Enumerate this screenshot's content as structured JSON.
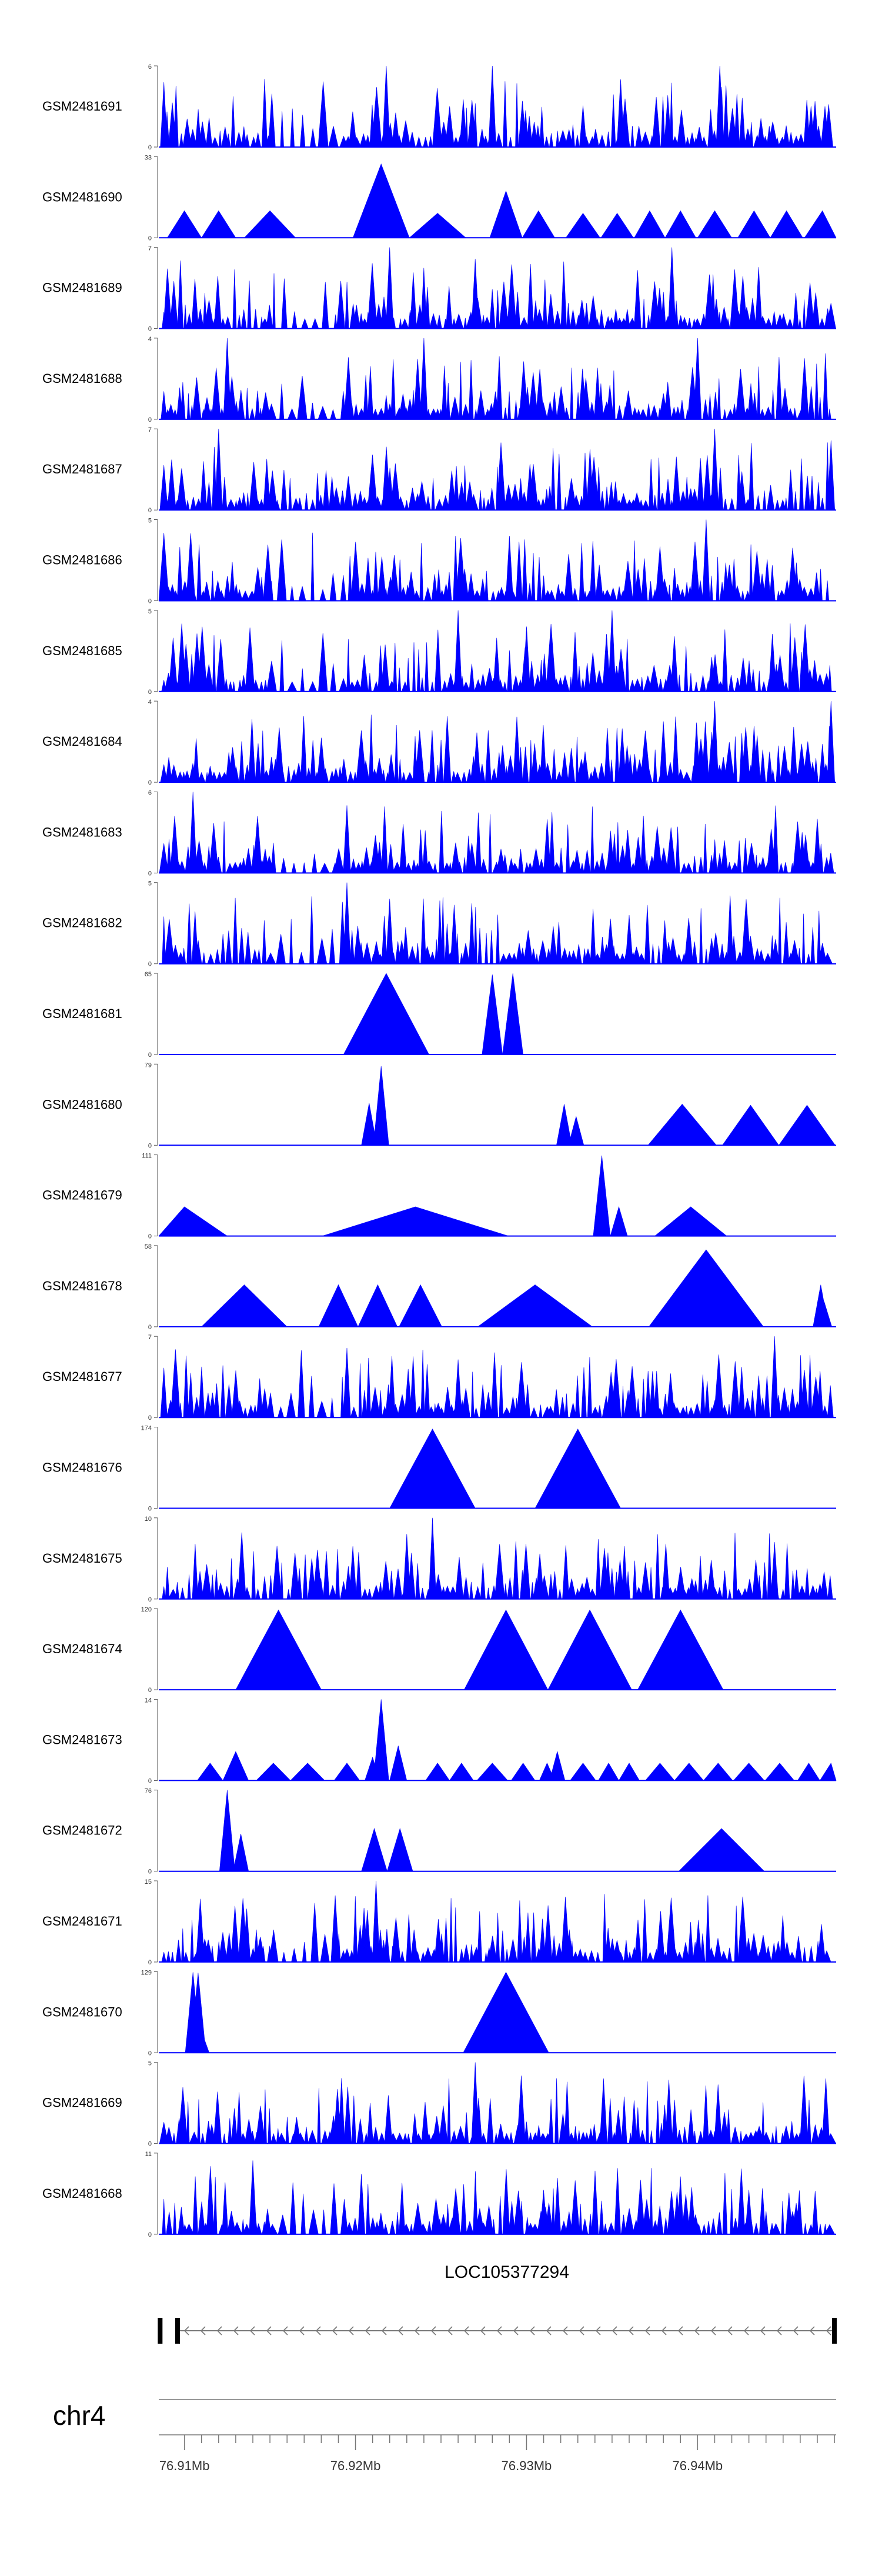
{
  "chart_data": {
    "type": "area",
    "xlabel": "",
    "ylabel": "",
    "fill_color": "#0000ff",
    "x_range_mb": [
      76.9085,
      76.9481
    ],
    "tracks": [
      {
        "name": "GSM2481691",
        "ymax": 6,
        "profile": "dense",
        "seed": 11,
        "peaks": [
          [
            76.9218,
            6
          ],
          [
            76.928,
            6
          ],
          [
            76.9413,
            6
          ],
          [
            76.9355,
            5
          ]
        ]
      },
      {
        "name": "GSM2481690",
        "ymax": 33,
        "profile": "sparse",
        "seed": 12,
        "peaks": [
          [
            76.91,
            11
          ],
          [
            76.912,
            11
          ],
          [
            76.915,
            11
          ],
          [
            76.9215,
            30
          ],
          [
            76.9248,
            10
          ],
          [
            76.9288,
            19
          ],
          [
            76.9307,
            11
          ],
          [
            76.9333,
            10
          ],
          [
            76.9353,
            10
          ],
          [
            76.9372,
            11
          ],
          [
            76.939,
            11
          ],
          [
            76.941,
            11
          ],
          [
            76.9433,
            11
          ],
          [
            76.9452,
            11
          ],
          [
            76.9473,
            11
          ]
        ]
      },
      {
        "name": "GSM2481689",
        "ymax": 7,
        "profile": "dense",
        "seed": 13,
        "peaks": [
          [
            76.922,
            7
          ],
          [
            76.9385,
            7
          ],
          [
            76.927,
            6
          ]
        ]
      },
      {
        "name": "GSM2481688",
        "ymax": 4,
        "profile": "dense",
        "seed": 14,
        "peaks": [
          [
            76.9125,
            4
          ],
          [
            76.924,
            4
          ],
          [
            76.94,
            4
          ]
        ]
      },
      {
        "name": "GSM2481687",
        "ymax": 7,
        "profile": "dense",
        "seed": 15,
        "peaks": [
          [
            76.912,
            7
          ],
          [
            76.941,
            7
          ],
          [
            76.9478,
            6
          ]
        ]
      },
      {
        "name": "GSM2481686",
        "ymax": 5,
        "profile": "dense",
        "seed": 16,
        "peaks": [
          [
            76.929,
            4
          ],
          [
            76.9405,
            5
          ],
          [
            76.92,
            3
          ]
        ]
      },
      {
        "name": "GSM2481685",
        "ymax": 5,
        "profile": "dense",
        "seed": 17,
        "peaks": [
          [
            76.926,
            5
          ],
          [
            76.935,
            5
          ],
          [
            76.93,
            4
          ]
        ]
      },
      {
        "name": "GSM2481684",
        "ymax": 4,
        "profile": "dense",
        "seed": 18,
        "peaks": [
          [
            76.941,
            4
          ],
          [
            76.9478,
            4
          ],
          [
            76.938,
            3
          ]
        ]
      },
      {
        "name": "GSM2481683",
        "ymax": 6,
        "profile": "dense",
        "seed": 19,
        "peaks": [
          [
            76.9105,
            6
          ],
          [
            76.9195,
            5
          ],
          [
            76.947,
            4
          ]
        ]
      },
      {
        "name": "GSM2481682",
        "ymax": 5,
        "profile": "dense",
        "seed": 20,
        "peaks": [
          [
            76.9195,
            5
          ],
          [
            76.922,
            4
          ],
          [
            76.936,
            3
          ]
        ]
      },
      {
        "name": "GSM2481681",
        "ymax": 65,
        "profile": "sparse",
        "seed": 21,
        "peaks": [
          [
            76.9218,
            65
          ],
          [
            76.928,
            64
          ],
          [
            76.9292,
            65
          ]
        ]
      },
      {
        "name": "GSM2481680",
        "ymax": 79,
        "profile": "sparse",
        "seed": 22,
        "peaks": [
          [
            76.9208,
            41
          ],
          [
            76.9215,
            77
          ],
          [
            76.9322,
            40
          ],
          [
            76.9329,
            28
          ],
          [
            76.9391,
            40
          ],
          [
            76.9431,
            39
          ],
          [
            76.9464,
            39
          ]
        ]
      },
      {
        "name": "GSM2481679",
        "ymax": 111,
        "profile": "sparse",
        "seed": 23,
        "peaks": [
          [
            76.91,
            40
          ],
          [
            76.9235,
            40
          ],
          [
            76.9344,
            110
          ],
          [
            76.9354,
            40
          ],
          [
            76.9396,
            40
          ]
        ]
      },
      {
        "name": "GSM2481678",
        "ymax": 58,
        "profile": "sparse",
        "seed": 24,
        "peaks": [
          [
            76.9135,
            30
          ],
          [
            76.919,
            30
          ],
          [
            76.9213,
            30
          ],
          [
            76.9238,
            30
          ],
          [
            76.9305,
            30
          ],
          [
            76.9405,
            55
          ],
          [
            76.9472,
            30
          ],
          [
            76.9474,
            18
          ]
        ]
      },
      {
        "name": "GSM2481677",
        "ymax": 7,
        "profile": "dense",
        "seed": 25,
        "peaks": [
          [
            76.9195,
            6
          ],
          [
            76.9445,
            7
          ],
          [
            76.926,
            5
          ]
        ]
      },
      {
        "name": "GSM2481676",
        "ymax": 174,
        "profile": "sparse",
        "seed": 26,
        "peaks": [
          [
            76.9245,
            170
          ],
          [
            76.933,
            170
          ]
        ]
      },
      {
        "name": "GSM2481675",
        "ymax": 10,
        "profile": "dense",
        "seed": 27,
        "peaks": [
          [
            76.9245,
            10
          ],
          [
            76.923,
            8
          ],
          [
            76.9445,
            7
          ]
        ]
      },
      {
        "name": "GSM2481674",
        "ymax": 120,
        "profile": "sparse",
        "seed": 28,
        "peaks": [
          [
            76.9155,
            118
          ],
          [
            76.9288,
            118
          ],
          [
            76.9337,
            118
          ],
          [
            76.939,
            118
          ]
        ]
      },
      {
        "name": "GSM2481673",
        "ymax": 14,
        "profile": "sparse",
        "seed": 29,
        "peaks": [
          [
            76.9115,
            3
          ],
          [
            76.913,
            5
          ],
          [
            76.9152,
            3
          ],
          [
            76.9172,
            3
          ],
          [
            76.9195,
            3
          ],
          [
            76.921,
            4
          ],
          [
            76.9215,
            14
          ],
          [
            76.9225,
            6
          ],
          [
            76.9248,
            3
          ],
          [
            76.9262,
            3
          ],
          [
            76.928,
            3
          ],
          [
            76.9298,
            3
          ],
          [
            76.9312,
            3
          ],
          [
            76.9318,
            5
          ],
          [
            76.9333,
            3
          ],
          [
            76.9348,
            3
          ],
          [
            76.936,
            3
          ],
          [
            76.9378,
            3
          ],
          [
            76.9395,
            3
          ],
          [
            76.9412,
            3
          ],
          [
            76.943,
            3
          ],
          [
            76.9448,
            3
          ],
          [
            76.9465,
            3
          ],
          [
            76.9478,
            3
          ]
        ]
      },
      {
        "name": "GSM2481672",
        "ymax": 76,
        "profile": "sparse",
        "seed": 30,
        "peaks": [
          [
            76.9125,
            76
          ],
          [
            76.9133,
            35
          ],
          [
            76.9211,
            40
          ],
          [
            76.9226,
            40
          ],
          [
            76.9414,
            40
          ]
        ]
      },
      {
        "name": "GSM2481671",
        "ymax": 15,
        "profile": "dense",
        "seed": 31,
        "peaks": [
          [
            76.9212,
            15
          ],
          [
            76.9205,
            10
          ],
          [
            76.9325,
            6
          ]
        ]
      },
      {
        "name": "GSM2481670",
        "ymax": 129,
        "profile": "sparse",
        "seed": 32,
        "peaks": [
          [
            76.9105,
            128
          ],
          [
            76.9108,
            127
          ],
          [
            76.911,
            34
          ],
          [
            76.9288,
            128
          ]
        ]
      },
      {
        "name": "GSM2481669",
        "ymax": 5,
        "profile": "dense",
        "seed": 33,
        "peaks": [
          [
            76.927,
            5
          ],
          [
            76.9345,
            4
          ],
          [
            76.9475,
            4
          ]
        ]
      },
      {
        "name": "GSM2481668",
        "ymax": 11,
        "profile": "dense",
        "seed": 34,
        "peaks": [
          [
            76.914,
            10
          ],
          [
            76.931,
            6
          ],
          [
            76.943,
            6
          ]
        ]
      }
    ],
    "gene": {
      "name": "LOC105377294",
      "start_mb": 76.9096,
      "end_mb": 76.9481,
      "strand": "-"
    },
    "chromosome": "chr4",
    "x_ticks": [
      76.91,
      76.911,
      76.912,
      76.913,
      76.914,
      76.915,
      76.916,
      76.917,
      76.918,
      76.919,
      76.92,
      76.921,
      76.922,
      76.923,
      76.924,
      76.925,
      76.926,
      76.927,
      76.928,
      76.929,
      76.93,
      76.931,
      76.932,
      76.933,
      76.934,
      76.935,
      76.936,
      76.937,
      76.938,
      76.939,
      76.94,
      76.941,
      76.942,
      76.943,
      76.944,
      76.945,
      76.946,
      76.947,
      76.948
    ],
    "x_tick_labels": [
      {
        "value": 76.91,
        "label": "76.91Mb"
      },
      {
        "value": 76.92,
        "label": "76.92Mb"
      },
      {
        "value": 76.93,
        "label": "76.93Mb"
      },
      {
        "value": 76.94,
        "label": "76.94Mb"
      }
    ]
  }
}
